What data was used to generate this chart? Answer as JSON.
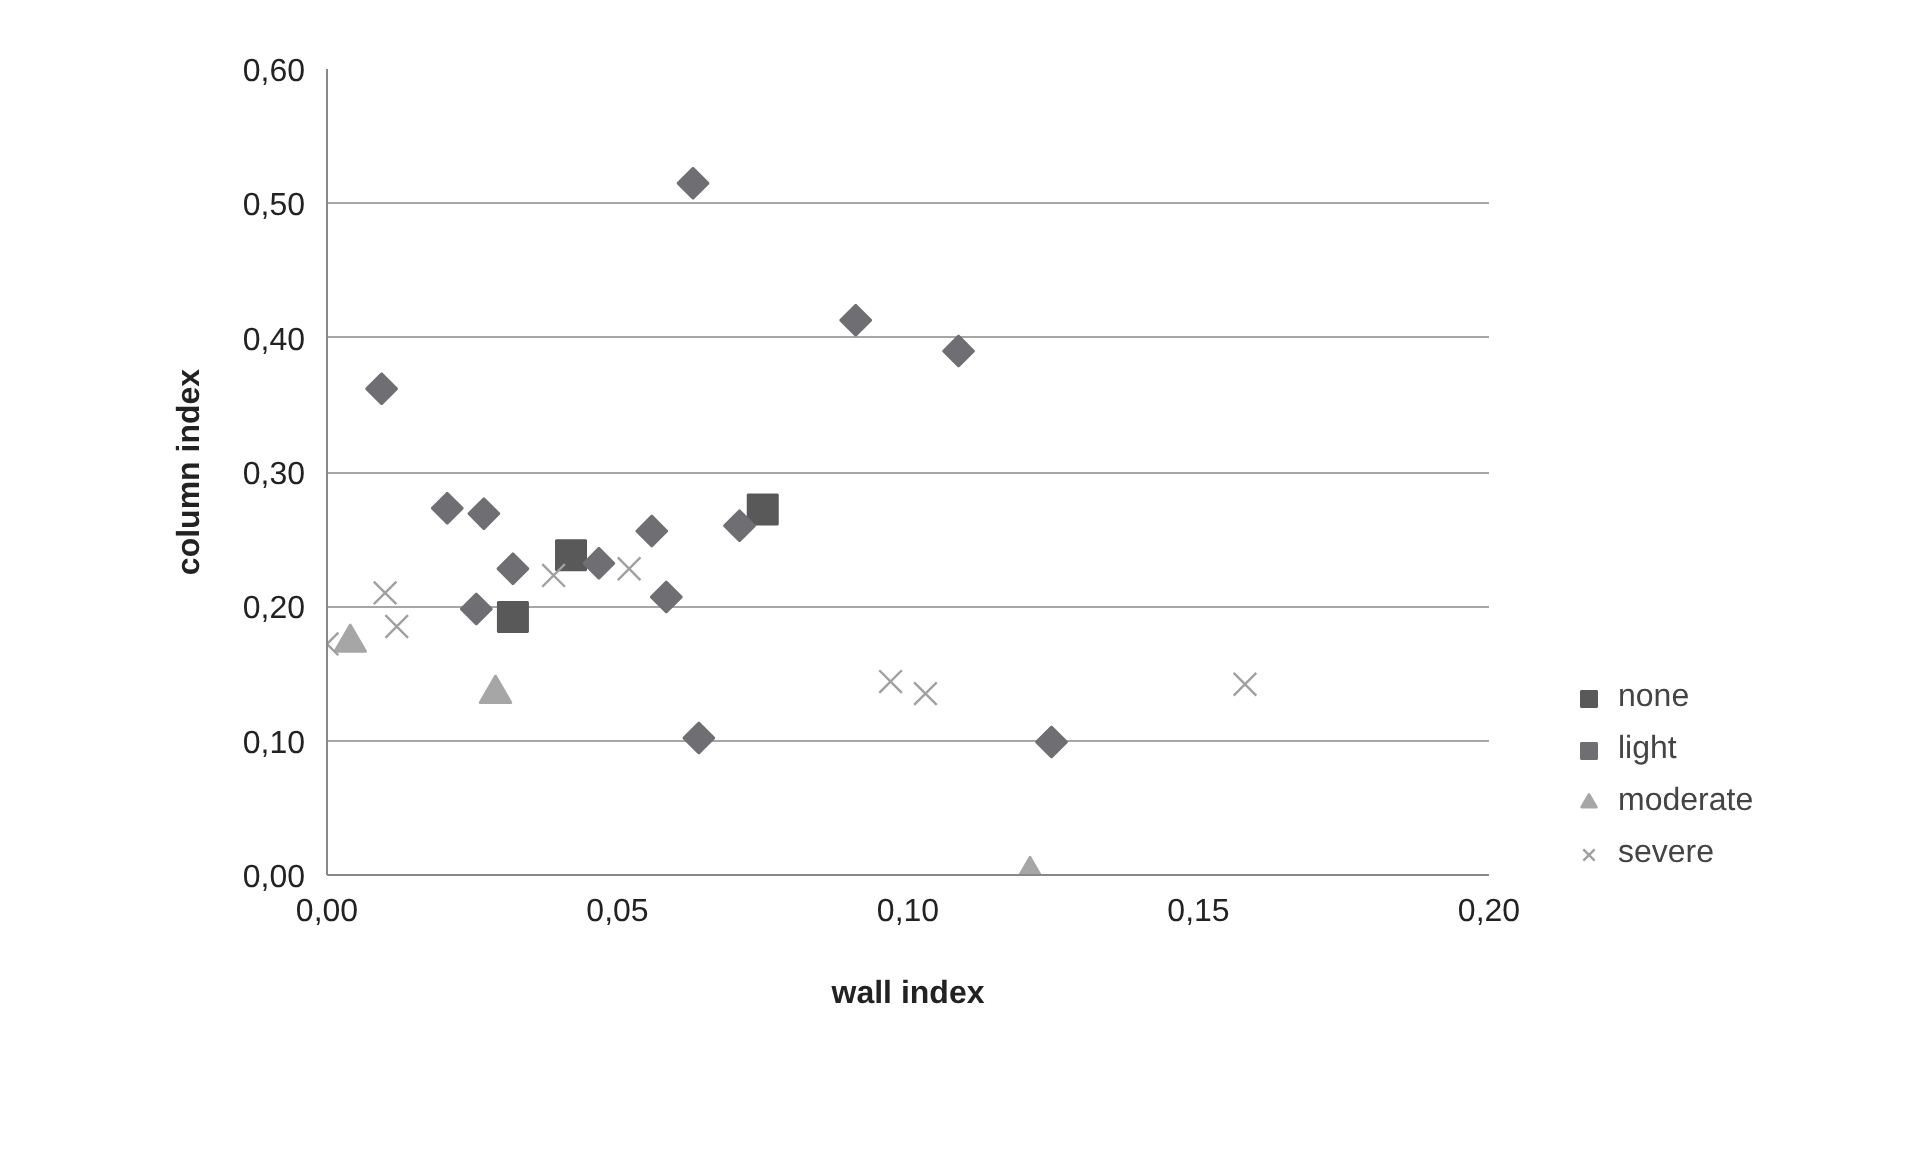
{
  "chart_data": {
    "type": "scatter",
    "xlabel": "wall index",
    "ylabel": "column index",
    "xlim": [
      0,
      0.2
    ],
    "xticks": [
      {
        "value": 0,
        "label": "0,00"
      },
      {
        "value": 0.05,
        "label": "0,05"
      },
      {
        "value": 0.1,
        "label": "0,10"
      },
      {
        "value": 0.15,
        "label": "0,15"
      },
      {
        "value": 0.2,
        "label": "0,20"
      }
    ],
    "ylim": [
      0,
      0.6
    ],
    "yticks": [
      {
        "value": 0,
        "label": "0,00"
      },
      {
        "value": 0.1,
        "label": "0,10"
      },
      {
        "value": 0.2,
        "label": "0,20"
      },
      {
        "value": 0.3,
        "label": "0,30"
      },
      {
        "value": 0.4,
        "label": "0,40"
      },
      {
        "value": 0.5,
        "label": "0,50"
      },
      {
        "value": 0.6,
        "label": "0,60"
      }
    ],
    "grid": "y",
    "legend": "right",
    "series": [
      {
        "name": "none",
        "color": "#595959",
        "marker": "square",
        "x": [
          0.042,
          0.032,
          0.075
        ],
        "values": [
          0.238,
          0.192,
          0.272
        ]
      },
      {
        "name": "light",
        "color": "#6e6e73",
        "marker": "diamond",
        "x": [
          0.0094,
          0.0207,
          0.027,
          0.032,
          0.0257,
          0.0468,
          0.0559,
          0.0584,
          0.071,
          0.064,
          0.063,
          0.091,
          0.1087,
          0.1247
        ],
        "values": [
          0.362,
          0.273,
          0.269,
          0.228,
          0.198,
          0.232,
          0.256,
          0.207,
          0.26,
          0.102,
          0.515,
          0.413,
          0.39,
          0.099
        ]
      },
      {
        "name": "moderate",
        "color": "#a6a6a6",
        "marker": "triangle",
        "x": [
          0.004,
          0.029,
          0.121
        ],
        "values": [
          0.173,
          0.135,
          0.0
        ]
      },
      {
        "name": "severe",
        "color": "#a0a0a0",
        "marker": "cross",
        "x": [
          0.0,
          0.01,
          0.012,
          0.039,
          0.052,
          0.097,
          0.103,
          0.158
        ],
        "values": [
          0.172,
          0.21,
          0.185,
          0.223,
          0.228,
          0.144,
          0.135,
          0.142
        ]
      }
    ]
  }
}
